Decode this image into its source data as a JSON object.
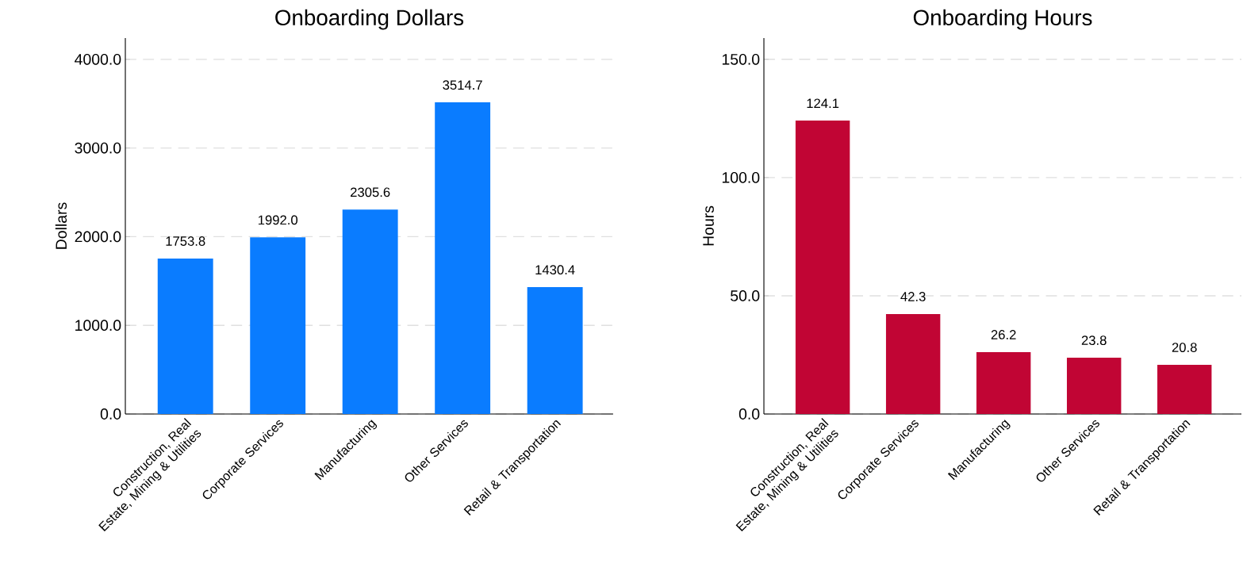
{
  "chart_data": [
    {
      "type": "bar",
      "title": "Onboarding Dollars",
      "ylabel": "Dollars",
      "categories": [
        "Construction, Real Estate, Mining & Utilities",
        "Corporate Services",
        "Manufacturing",
        "Other Services",
        "Retail & Transportation"
      ],
      "values": [
        1753.8,
        1992.0,
        2305.6,
        3514.7,
        1430.4
      ],
      "value_labels": [
        "1753.8",
        "1992.0",
        "2305.6",
        "3514.7",
        "1430.4"
      ],
      "color": "#0a7cff",
      "ylim": [
        0,
        4240
      ],
      "grid": "y",
      "yticks": [
        {
          "value": 0,
          "label": "0.0"
        },
        {
          "value": 1000,
          "label": "1000.0"
        },
        {
          "value": 2000,
          "label": "2000.0"
        },
        {
          "value": 3000,
          "label": "3000.0"
        },
        {
          "value": 4000,
          "label": "4000.0"
        }
      ]
    },
    {
      "type": "bar",
      "title": "Onboarding Hours",
      "ylabel": "Hours",
      "categories": [
        "Construction, Real Estate, Mining & Utilities",
        "Corporate Services",
        "Manufacturing",
        "Other Services",
        "Retail & Transportation"
      ],
      "values": [
        124.1,
        42.3,
        26.2,
        23.8,
        20.8
      ],
      "value_labels": [
        "124.1",
        "42.3",
        "26.2",
        "23.8",
        "20.8"
      ],
      "color": "#c10534",
      "ylim": [
        0,
        159
      ],
      "yticks": [
        {
          "value": 0,
          "label": "0.0"
        },
        {
          "value": 50,
          "label": "50.0"
        },
        {
          "value": 100,
          "label": "100.0"
        },
        {
          "value": 150,
          "label": "150.0"
        }
      ],
      "grid": "y"
    }
  ]
}
